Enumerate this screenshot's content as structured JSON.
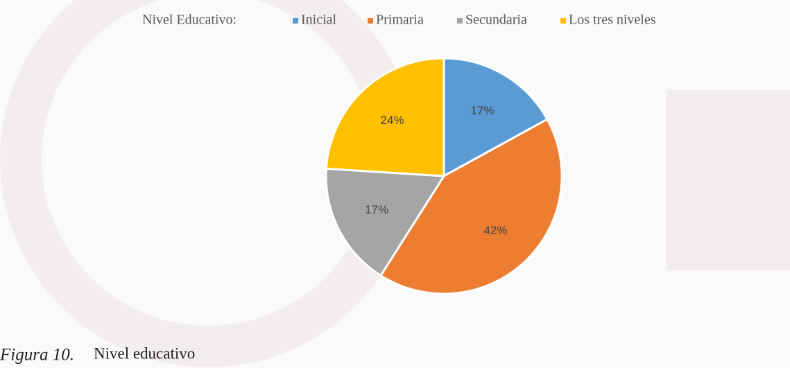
{
  "chart_data": {
    "type": "pie",
    "legend_title": "Nivel Educativo:",
    "categories": [
      "Inicial",
      "Primaria",
      "Secundaria",
      "Los tres niveles"
    ],
    "values": [
      17,
      42,
      17,
      24
    ],
    "value_labels": [
      "17%",
      "42%",
      "17%",
      "24%"
    ],
    "colors": [
      "#5b9bd5",
      "#ed7d31",
      "#a5a5a5",
      "#ffc000"
    ],
    "legend": "top",
    "caption_label": "Figura 10.",
    "caption_text": "Nivel educativo"
  }
}
